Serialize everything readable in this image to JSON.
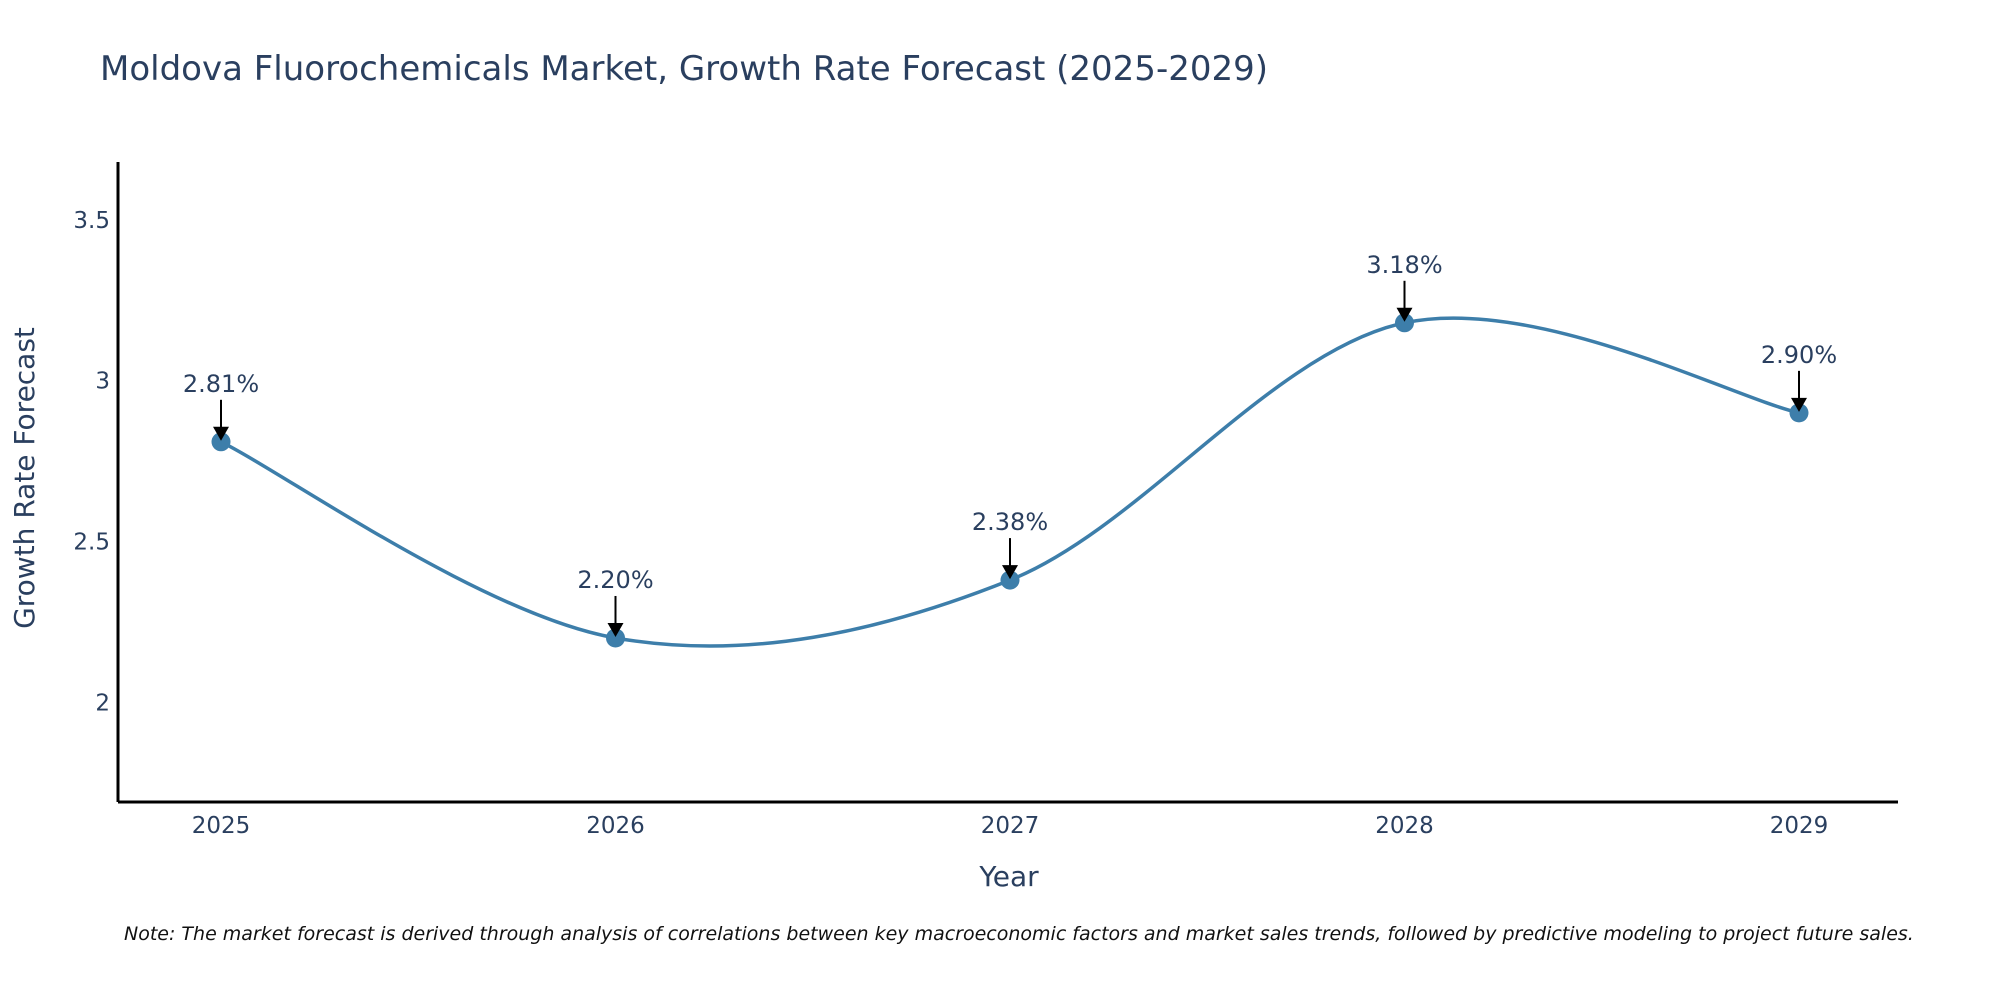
{
  "chart_data": {
    "type": "line",
    "title": "Moldova Fluorochemicals Market, Growth Rate Forecast (2025-2029)",
    "xlabel": "Year",
    "ylabel": "Growth Rate Forecast",
    "categories": [
      "2025",
      "2026",
      "2027",
      "2028",
      "2029"
    ],
    "values": [
      2.81,
      2.2,
      2.38,
      3.18,
      2.9
    ],
    "data_labels": [
      "2.81%",
      "2.20%",
      "2.38%",
      "3.18%",
      "2.90%"
    ],
    "ylim": [
      1.69,
      3.68
    ],
    "yticks": [
      2,
      2.5,
      3,
      3.5
    ],
    "ytick_labels": [
      "2",
      "2.5",
      "3",
      "3.5"
    ],
    "grid": false,
    "line_color": "#3d7eaa",
    "marker_color": "#3d7eaa",
    "arrow_color": "#000000"
  },
  "note": "Note: The market forecast is derived through analysis of correlations between key macroeconomic factors and market sales trends, followed by predictive modeling to project future sales."
}
